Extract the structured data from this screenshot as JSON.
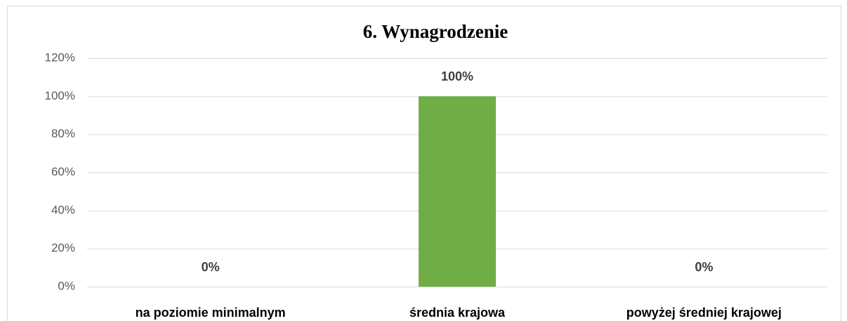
{
  "chart_data": {
    "type": "bar",
    "title": "6. Wynagrodzenie",
    "categories": [
      "na poziomie minimalnym",
      "średnia krajowa",
      "powyżej średniej krajowej"
    ],
    "values": [
      0,
      100,
      0
    ],
    "value_labels": [
      "0%",
      "100%",
      "0%"
    ],
    "color": "#70ad47",
    "ylim": [
      0,
      120
    ],
    "yticks": [
      {
        "value": 0,
        "label": "0%"
      },
      {
        "value": 20,
        "label": "20%"
      },
      {
        "value": 40,
        "label": "40%"
      },
      {
        "value": 60,
        "label": "60%"
      },
      {
        "value": 80,
        "label": "80%"
      },
      {
        "value": 100,
        "label": "100%"
      },
      {
        "value": 120,
        "label": "120%"
      }
    ],
    "grid": true
  }
}
